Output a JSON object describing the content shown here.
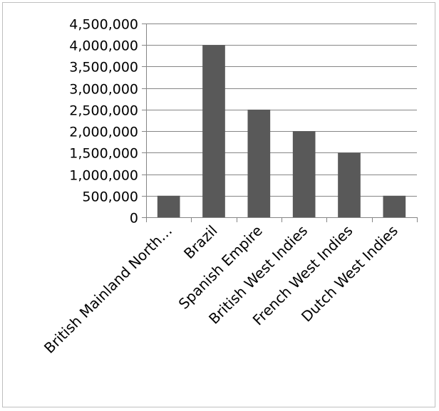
{
  "chart_data": {
    "type": "bar",
    "categories": [
      "British Mainland North…",
      "Brazil",
      "Spanish Empire",
      "British West Indies",
      "French West Indies",
      "Dutch West Indies"
    ],
    "values": [
      500000,
      4000000,
      2500000,
      2000000,
      1500000,
      500000
    ],
    "ylim": [
      0,
      4500000
    ],
    "yticks": [
      0,
      500000,
      1000000,
      1500000,
      2000000,
      2500000,
      3000000,
      3500000,
      4000000,
      4500000
    ],
    "ytick_labels": [
      "0",
      "500,000",
      "1,000,000",
      "1,500,000",
      "2,000,000",
      "2,500,000",
      "3,000,000",
      "3,500,000",
      "4,000,000",
      "4,500,000"
    ],
    "grid": true,
    "legend": "none",
    "colors": {
      "bar": "#595959",
      "grid": "#868686",
      "axis": "#868686"
    }
  }
}
